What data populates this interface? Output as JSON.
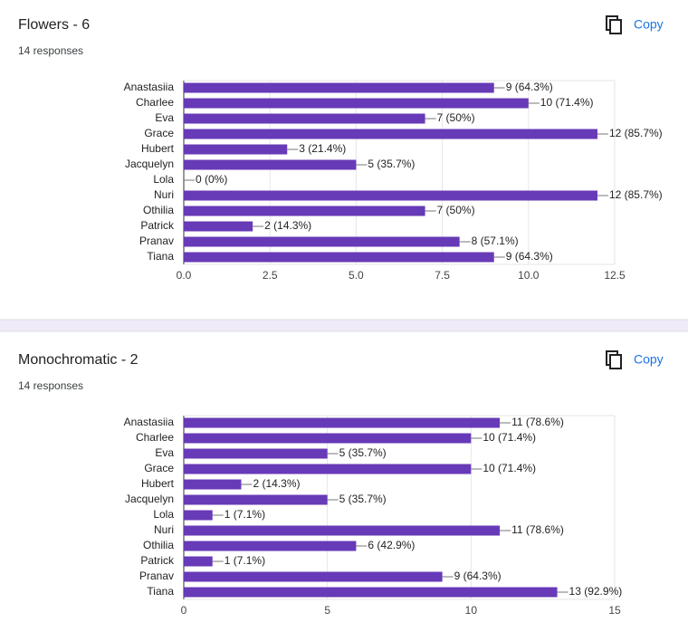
{
  "chart_data": [
    {
      "type": "bar",
      "orientation": "horizontal",
      "title": "Flowers - 6",
      "subtitle": "14 responses",
      "button": "Copy",
      "categories": [
        "Anastasiia",
        "Charlee",
        "Eva",
        "Grace",
        "Hubert",
        "Jacquelyn",
        "Lola",
        "Nuri",
        "Othilia",
        "Patrick",
        "Pranav",
        "Tiana"
      ],
      "values": [
        9,
        10,
        7,
        12,
        3,
        5,
        0,
        12,
        7,
        2,
        8,
        9
      ],
      "value_labels": [
        "9 (64.3%)",
        "10 (71.4%)",
        "7 (50%)",
        "12 (85.7%)",
        "3 (21.4%)",
        "5 (35.7%)",
        "0 (0%)",
        "12 (85.7%)",
        "7 (50%)",
        "2 (14.3%)",
        "8 (57.1%)",
        "9 (64.3%)"
      ],
      "color": "#673ab7",
      "xlim": [
        0,
        12.5
      ],
      "xticks": [
        {
          "value": 0,
          "label": "0.0"
        },
        2.5,
        {
          "value": 5,
          "label": "5.0"
        },
        7.5,
        {
          "value": 10,
          "label": "10.0"
        },
        12.5
      ],
      "grid": true
    },
    {
      "type": "bar",
      "orientation": "horizontal",
      "title": "Monochromatic - 2",
      "subtitle": "14 responses",
      "button": "Copy",
      "categories": [
        "Anastasiia",
        "Charlee",
        "Eva",
        "Grace",
        "Hubert",
        "Jacquelyn",
        "Lola",
        "Nuri",
        "Othilia",
        "Patrick",
        "Pranav",
        "Tiana"
      ],
      "values": [
        11,
        10,
        5,
        10,
        2,
        5,
        1,
        11,
        6,
        1,
        9,
        13
      ],
      "value_labels": [
        "11 (78.6%)",
        "10 (71.4%)",
        "5 (35.7%)",
        "10 (71.4%)",
        "2 (14.3%)",
        "5 (35.7%)",
        "1 (7.1%)",
        "11 (78.6%)",
        "6 (42.9%)",
        "1 (7.1%)",
        "9 (64.3%)",
        "13 (92.9%)"
      ],
      "color": "#673ab7",
      "xlim": [
        0,
        15
      ],
      "xticks": [
        0,
        5,
        10,
        15
      ],
      "grid": true
    }
  ]
}
